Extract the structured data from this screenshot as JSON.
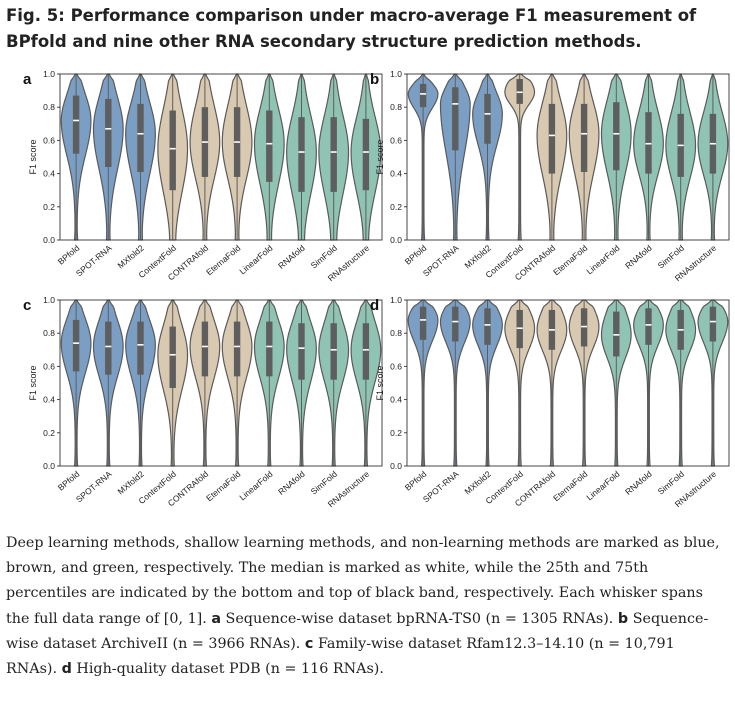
{
  "figure": {
    "title": "Fig. 5: Performance comparison under macro-average F1 measurement of BPfold and nine other RNA secondary structure prediction methods."
  },
  "colors": {
    "deep_learning": "#7b9fc4",
    "shallow_learning": "#d9c9b0",
    "non_learning": "#8fc4b4",
    "outline": "#5a5a5a",
    "iqr_band": "#5e5e5e",
    "median": "#ffffff"
  },
  "chart_data": [
    {
      "type": "violin",
      "panel_label": "a",
      "ylabel": "F1 score",
      "ylim": [
        0,
        1
      ],
      "yticks": [
        "0.0",
        "0.2",
        "0.4",
        "0.6",
        "0.8",
        "1.0"
      ],
      "categories": [
        "BPfold",
        "SPOT-RNA",
        "MXfold2",
        "ContextFold",
        "CONTRAfold",
        "EternaFold",
        "LinearFold",
        "RNAfold",
        "SimFold",
        "RNAstructure"
      ],
      "groups": [
        "deep",
        "deep",
        "deep",
        "shallow",
        "shallow",
        "shallow",
        "non",
        "non",
        "non",
        "non"
      ],
      "medians": [
        0.72,
        0.67,
        0.64,
        0.55,
        0.59,
        0.59,
        0.58,
        0.53,
        0.53,
        0.53
      ],
      "q1": [
        0.52,
        0.44,
        0.41,
        0.3,
        0.38,
        0.38,
        0.35,
        0.29,
        0.29,
        0.3
      ],
      "q3": [
        0.87,
        0.85,
        0.82,
        0.78,
        0.8,
        0.8,
        0.78,
        0.74,
        0.74,
        0.73
      ]
    },
    {
      "type": "violin",
      "panel_label": "b",
      "ylabel": "F1 score",
      "ylim": [
        0,
        1
      ],
      "yticks": [
        "0.0",
        "0.2",
        "0.4",
        "0.6",
        "0.8",
        "1.0"
      ],
      "categories": [
        "BPfold",
        "SPOT-RNA",
        "MXfold2",
        "ContextFold",
        "CONTRAfold",
        "EternaFold",
        "LinearFold",
        "RNAfold",
        "SimFold",
        "RNAstructure"
      ],
      "groups": [
        "deep",
        "deep",
        "deep",
        "shallow",
        "shallow",
        "shallow",
        "non",
        "non",
        "non",
        "non"
      ],
      "medians": [
        0.88,
        0.82,
        0.76,
        0.89,
        0.63,
        0.64,
        0.64,
        0.58,
        0.57,
        0.58
      ],
      "q1": [
        0.8,
        0.54,
        0.58,
        0.82,
        0.4,
        0.41,
        0.42,
        0.4,
        0.38,
        0.4
      ],
      "q3": [
        0.94,
        0.92,
        0.88,
        0.97,
        0.82,
        0.82,
        0.83,
        0.77,
        0.76,
        0.76
      ]
    },
    {
      "type": "violin",
      "panel_label": "c",
      "ylabel": "F1 score",
      "ylim": [
        0,
        1
      ],
      "yticks": [
        "0.0",
        "0.2",
        "0.4",
        "0.6",
        "0.8",
        "1.0"
      ],
      "categories": [
        "BPfold",
        "SPOT-RNA",
        "MXfold2",
        "ContextFold",
        "CONTRAfold",
        "EternaFold",
        "LinearFold",
        "RNAfold",
        "SimFold",
        "RNAstructure"
      ],
      "groups": [
        "deep",
        "deep",
        "deep",
        "shallow",
        "shallow",
        "shallow",
        "non",
        "non",
        "non",
        "non"
      ],
      "medians": [
        0.74,
        0.72,
        0.73,
        0.67,
        0.72,
        0.72,
        0.72,
        0.71,
        0.7,
        0.7
      ],
      "q1": [
        0.57,
        0.55,
        0.55,
        0.47,
        0.54,
        0.54,
        0.54,
        0.52,
        0.52,
        0.52
      ],
      "q3": [
        0.88,
        0.87,
        0.87,
        0.84,
        0.87,
        0.87,
        0.87,
        0.86,
        0.86,
        0.86
      ]
    },
    {
      "type": "violin",
      "panel_label": "d",
      "ylabel": "F1 score",
      "ylim": [
        0,
        1
      ],
      "yticks": [
        "0.0",
        "0.2",
        "0.4",
        "0.6",
        "0.8",
        "1.0"
      ],
      "categories": [
        "BPfold",
        "SPOT-RNA",
        "MXfold2",
        "ContextFold",
        "CONTRAfold",
        "EternaFold",
        "LinearFold",
        "RNAfold",
        "SimFold",
        "RNAstructure"
      ],
      "groups": [
        "deep",
        "deep",
        "deep",
        "shallow",
        "shallow",
        "shallow",
        "non",
        "non",
        "non",
        "non"
      ],
      "medians": [
        0.88,
        0.87,
        0.85,
        0.83,
        0.82,
        0.84,
        0.79,
        0.85,
        0.82,
        0.87
      ],
      "q1": [
        0.76,
        0.75,
        0.73,
        0.71,
        0.7,
        0.72,
        0.66,
        0.73,
        0.7,
        0.75
      ],
      "q3": [
        0.96,
        0.96,
        0.95,
        0.94,
        0.94,
        0.95,
        0.93,
        0.95,
        0.94,
        0.96
      ]
    }
  ],
  "caption": {
    "intro": "Deep learning methods, shallow learning methods, and non-learning methods are marked as blue, brown, and green, respectively. The median is marked as white, while the 25th and 75th percentiles are indicated by the bottom and top of black band, respectively. Each whisker spans the full data range of [0, 1].",
    "a_label": "a",
    "a_text": "Sequence-wise dataset bpRNA-TS0 (n = 1305 RNAs).",
    "b_label": "b",
    "b_text": "Sequence-wise dataset ArchiveII (n = 3966 RNAs).",
    "c_label": "c",
    "c_text": "Family-wise dataset Rfam12.3–14.10 (n = 10,791 RNAs).",
    "d_label": "d",
    "d_text": "High-quality dataset PDB (n = 116 RNAs)."
  }
}
